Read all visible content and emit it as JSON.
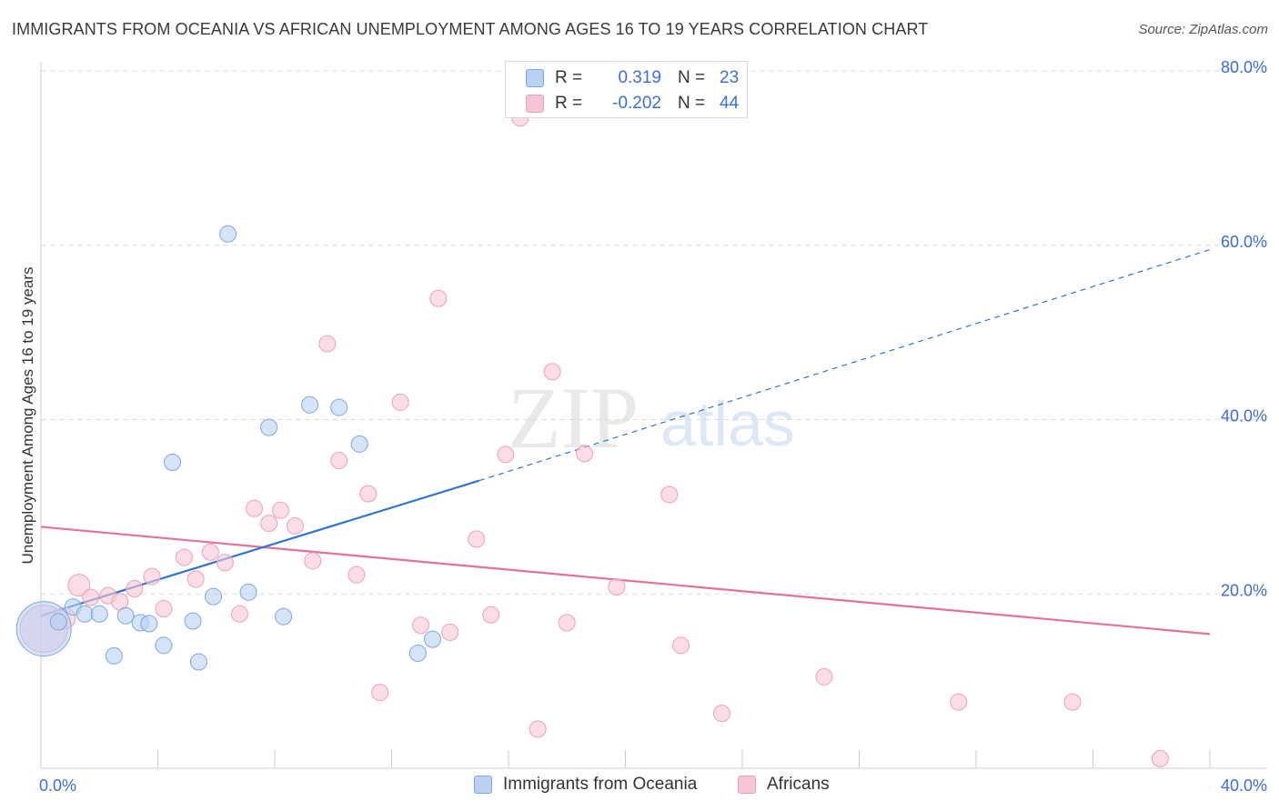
{
  "header": {
    "title": "IMMIGRANTS FROM OCEANIA VS AFRICAN UNEMPLOYMENT AMONG AGES 16 TO 19 YEARS CORRELATION CHART",
    "source": "Source: ZipAtlas.com"
  },
  "watermark": {
    "zip": "ZIP",
    "atlas": "atlas"
  },
  "colors": {
    "blue_fill": "#b9d2f2",
    "blue_stroke": "#7da7e0",
    "blue_line": "#2f74d0",
    "pink_fill": "#f7c6d5",
    "pink_stroke": "#eea0b8",
    "pink_line": "#e5709b",
    "tick_label": "#3b6fd1",
    "grid": "#dddddd"
  },
  "stats": {
    "blue": {
      "r_label": "R =",
      "r_value": "0.319",
      "n_label": "N =",
      "n_value": "23"
    },
    "pink": {
      "r_label": "R =",
      "r_value": "-0.202",
      "n_label": "N =",
      "n_value": "44"
    }
  },
  "legend": {
    "blue_label": "Immigrants from Oceania",
    "pink_label": "Africans"
  },
  "chart_data": {
    "type": "scatter",
    "title": "IMMIGRANTS FROM OCEANIA VS AFRICAN UNEMPLOYMENT AMONG AGES 16 TO 19 YEARS CORRELATION CHART",
    "ylabel": "Unemployment Among Ages 16 to 19 years",
    "xlabel": "",
    "xlim": [
      0,
      40
    ],
    "ylim": [
      0,
      80
    ],
    "x_tick_labels": [
      "0.0%",
      "40.0%"
    ],
    "y_ticks": [
      20,
      40,
      60,
      80
    ],
    "y_tick_labels": [
      "20.0%",
      "40.0%",
      "60.0%",
      "80.0%"
    ],
    "grid": true,
    "legend_position": "bottom-center",
    "series": [
      {
        "name": "Immigrants from Oceania",
        "color": "#b9d2f2",
        "points": [
          [
            0.1,
            16.0
          ],
          [
            0.6,
            16.8
          ],
          [
            1.1,
            18.5
          ],
          [
            1.5,
            17.7
          ],
          [
            2.0,
            17.7
          ],
          [
            2.5,
            12.9
          ],
          [
            2.9,
            17.5
          ],
          [
            3.4,
            16.7
          ],
          [
            3.7,
            16.6
          ],
          [
            4.2,
            14.1
          ],
          [
            4.5,
            35.1
          ],
          [
            5.2,
            16.9
          ],
          [
            5.4,
            12.2
          ],
          [
            5.9,
            19.7
          ],
          [
            6.4,
            61.3
          ],
          [
            7.1,
            20.2
          ],
          [
            7.8,
            39.1
          ],
          [
            8.3,
            17.4
          ],
          [
            9.2,
            41.7
          ],
          [
            10.2,
            41.4
          ],
          [
            10.9,
            37.2
          ],
          [
            12.9,
            13.2
          ],
          [
            13.4,
            14.8
          ]
        ],
        "point_sizes": [
          30,
          9,
          9,
          9,
          9,
          9,
          9,
          9,
          9,
          9,
          9,
          9,
          9,
          9,
          9,
          9,
          9,
          9,
          9,
          9,
          9,
          9,
          9
        ],
        "trend": {
          "x": [
            0,
            15
          ],
          "y": [
            17.5,
            33.0
          ],
          "style": "solid"
        },
        "trend_extension": {
          "x": [
            15,
            40
          ],
          "y": [
            33.0,
            59.5
          ],
          "style": "dashed"
        }
      },
      {
        "name": "Africans",
        "color": "#f7c6d5",
        "points": [
          [
            0.1,
            16.0
          ],
          [
            0.8,
            17.2
          ],
          [
            1.3,
            21.0
          ],
          [
            1.7,
            19.6
          ],
          [
            2.3,
            19.8
          ],
          [
            2.7,
            19.1
          ],
          [
            3.2,
            20.6
          ],
          [
            3.8,
            22.0
          ],
          [
            4.2,
            18.3
          ],
          [
            4.9,
            24.2
          ],
          [
            5.3,
            21.7
          ],
          [
            5.8,
            24.8
          ],
          [
            6.3,
            23.6
          ],
          [
            6.8,
            17.7
          ],
          [
            7.3,
            29.8
          ],
          [
            7.8,
            28.1
          ],
          [
            8.2,
            29.6
          ],
          [
            8.7,
            27.8
          ],
          [
            9.3,
            23.8
          ],
          [
            9.8,
            48.7
          ],
          [
            10.2,
            35.3
          ],
          [
            10.8,
            22.2
          ],
          [
            11.2,
            31.5
          ],
          [
            11.6,
            8.7
          ],
          [
            12.3,
            42.0
          ],
          [
            13.0,
            16.4
          ],
          [
            13.6,
            53.9
          ],
          [
            14.0,
            15.6
          ],
          [
            14.9,
            26.3
          ],
          [
            15.4,
            17.6
          ],
          [
            15.9,
            36.0
          ],
          [
            16.4,
            74.6
          ],
          [
            17.0,
            4.5
          ],
          [
            17.5,
            45.5
          ],
          [
            18.0,
            16.7
          ],
          [
            18.6,
            36.1
          ],
          [
            19.7,
            20.8
          ],
          [
            21.5,
            31.4
          ],
          [
            21.9,
            14.1
          ],
          [
            23.3,
            6.3
          ],
          [
            26.8,
            10.5
          ],
          [
            31.4,
            7.6
          ],
          [
            35.3,
            7.6
          ],
          [
            38.3,
            1.1
          ]
        ],
        "point_sizes": [
          26,
          12,
          12,
          9,
          9,
          9,
          9,
          9,
          9,
          9,
          9,
          9,
          9,
          9,
          9,
          9,
          9,
          9,
          9,
          9,
          9,
          9,
          9,
          9,
          9,
          9,
          9,
          9,
          9,
          9,
          9,
          9,
          9,
          9,
          9,
          9,
          9,
          9,
          9,
          9,
          9,
          9,
          9,
          9
        ],
        "trend": {
          "x": [
            0,
            40
          ],
          "y": [
            27.7,
            15.4
          ],
          "style": "solid"
        }
      }
    ]
  }
}
